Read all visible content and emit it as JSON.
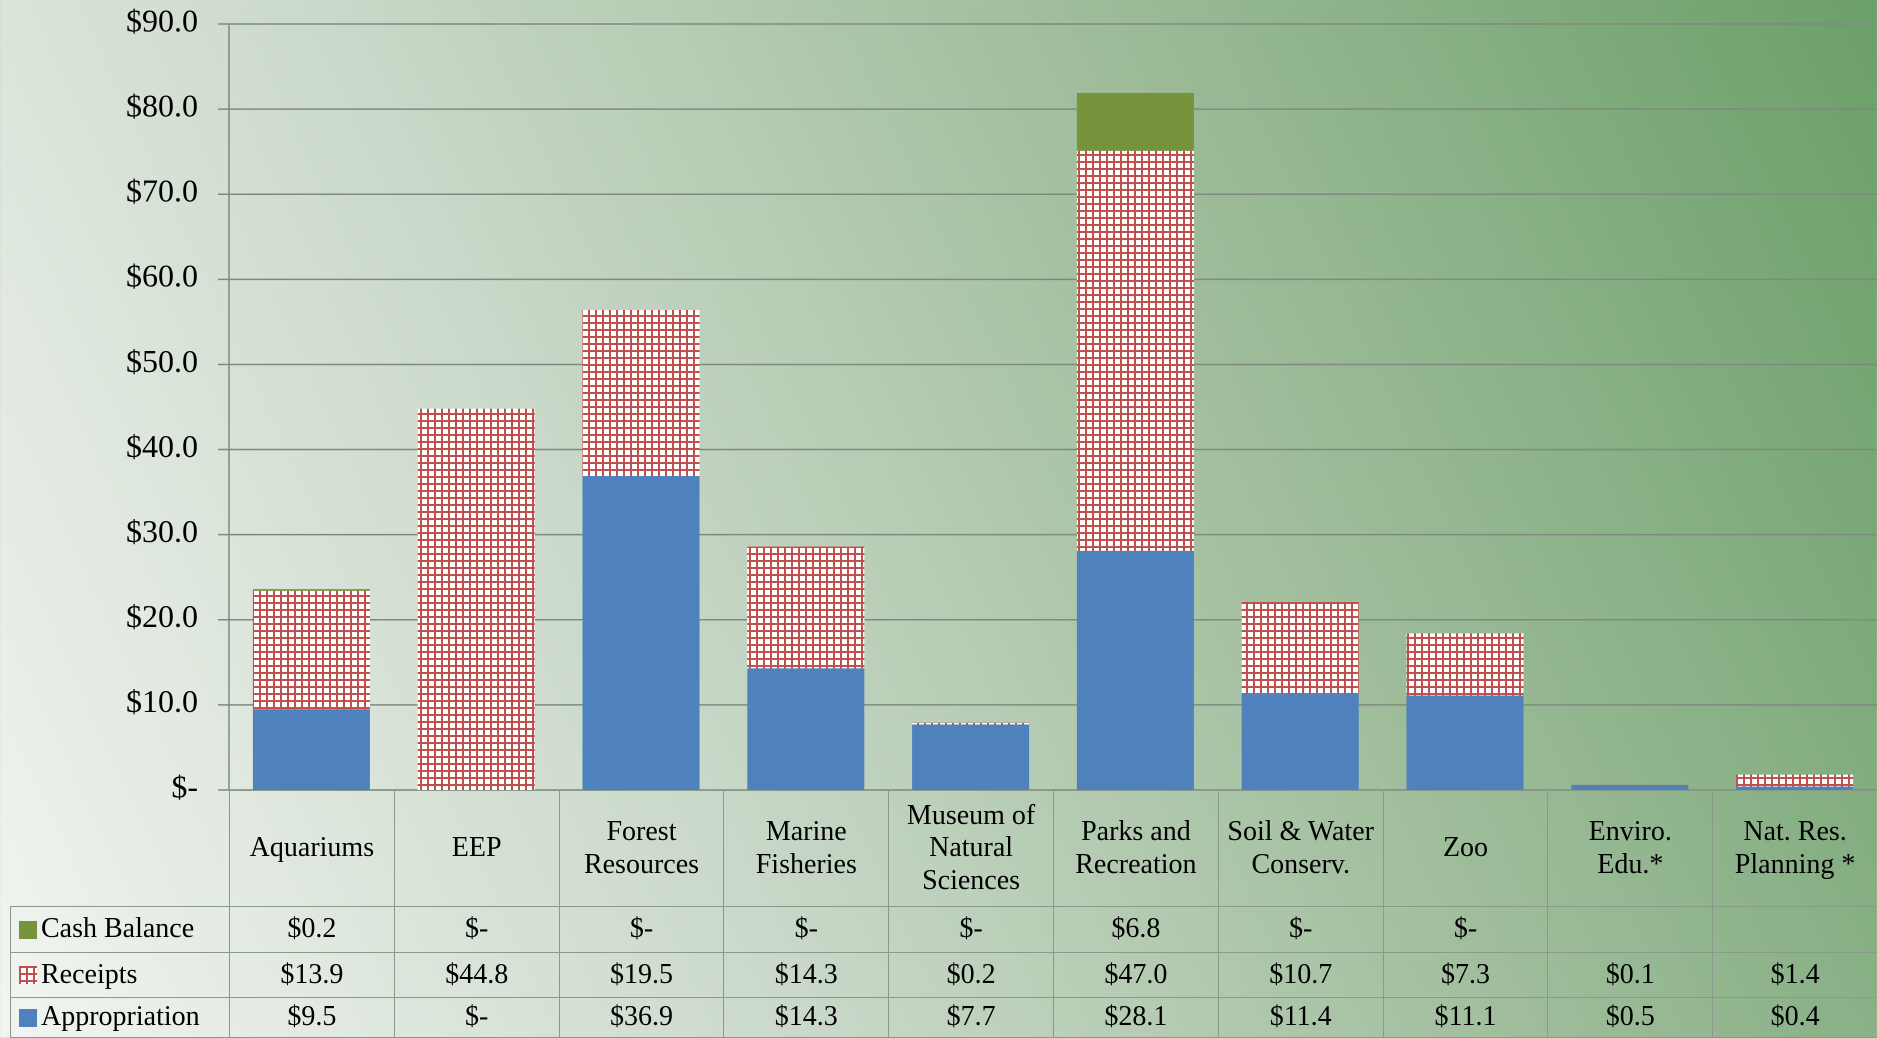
{
  "chart_data": {
    "type": "stacked-bar",
    "categories": [
      "Aquariums",
      "EEP",
      "Forest Resources",
      "Marine Fisheries",
      "Museum of Natural Sciences",
      "Parks and Recreation",
      "Soil & Water Conserv.",
      "Zoo",
      "Enviro. Edu.*",
      "Nat. Res. Planning *"
    ],
    "series": [
      {
        "name": "Appropriation",
        "color": "#4f81bd",
        "values": [
          9.5,
          0,
          36.9,
          14.3,
          7.7,
          28.1,
          11.4,
          11.1,
          0.5,
          0.4
        ],
        "value_labels": [
          "$9.5",
          "$-",
          "$36.9",
          "$14.3",
          "$7.7",
          "$28.1",
          "$11.4",
          "$11.1",
          "$0.5",
          "$0.4"
        ]
      },
      {
        "name": "Receipts",
        "color": "#c0504d",
        "values": [
          13.9,
          44.8,
          19.5,
          14.3,
          0.2,
          47.0,
          10.7,
          7.3,
          0.1,
          1.4
        ],
        "value_labels": [
          "$13.9",
          "$44.8",
          "$19.5",
          "$14.3",
          "$0.2",
          "$47.0",
          "$10.7",
          "$7.3",
          "$0.1",
          "$1.4"
        ]
      },
      {
        "name": "Cash Balance",
        "color": "#77933c",
        "values": [
          0.2,
          0,
          0,
          0,
          0,
          6.8,
          0,
          0,
          null,
          null
        ],
        "value_labels": [
          "$0.2",
          "$-",
          "$-",
          "$-",
          "$-",
          "$6.8",
          "$-",
          "$-",
          null,
          null
        ]
      }
    ],
    "ylim": [
      0,
      90
    ],
    "yticks": [
      {
        "value": 0,
        "label": "$-"
      },
      {
        "value": 10,
        "label": "$10.0"
      },
      {
        "value": 20,
        "label": "$20.0"
      },
      {
        "value": 30,
        "label": "$30.0"
      },
      {
        "value": 40,
        "label": "$40.0"
      },
      {
        "value": 50,
        "label": "$50.0"
      },
      {
        "value": 60,
        "label": "$60.0"
      },
      {
        "value": 70,
        "label": "$70.0"
      },
      {
        "value": 80,
        "label": "$80.0"
      },
      {
        "value": 90,
        "label": "$90.0"
      }
    ],
    "grid": true
  }
}
